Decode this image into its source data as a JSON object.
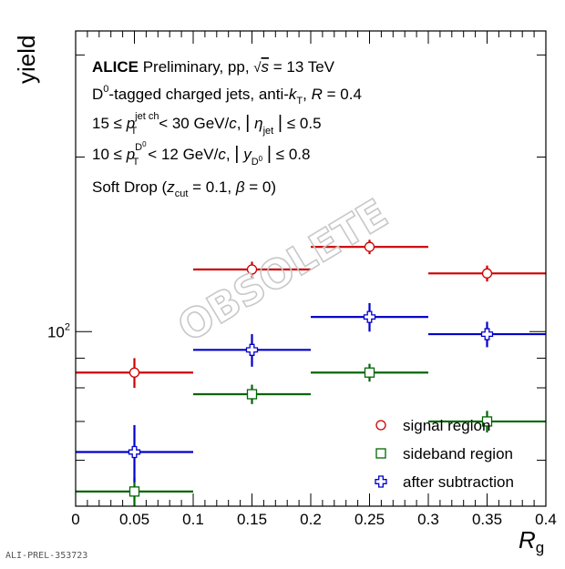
{
  "chart_data": {
    "type": "scatter",
    "xlabel": "R",
    "xlabel_sub": "g",
    "ylabel": "yield",
    "xlim": [
      0,
      0.4
    ],
    "ylim": [
      50,
      330
    ],
    "yscale": "log",
    "x_ticks": [
      "0",
      "0.05",
      "0.1",
      "0.15",
      "0.2",
      "0.25",
      "0.3",
      "0.35",
      "0.4"
    ],
    "y_tick_label": {
      "base": "10",
      "exp": "2"
    },
    "bins": [
      [
        0,
        0.1
      ],
      [
        0.1,
        0.2
      ],
      [
        0.2,
        0.3
      ],
      [
        0.3,
        0.4
      ]
    ],
    "x_centers": [
      0.05,
      0.15,
      0.25,
      0.35
    ],
    "series": [
      {
        "name": "signal region",
        "marker": "circle",
        "color": "#cc0000",
        "values": [
          85,
          128,
          140,
          126
        ],
        "errors": [
          5,
          4,
          4,
          4
        ]
      },
      {
        "name": "sideband region",
        "marker": "square",
        "color": "#006600",
        "values": [
          53,
          78,
          85,
          70
        ],
        "errors": [
          3,
          3,
          3,
          3
        ]
      },
      {
        "name": "after subtraction",
        "marker": "cross",
        "color": "#0000cc",
        "values": [
          62,
          93,
          106,
          99
        ],
        "errors": [
          7,
          6,
          6,
          5
        ]
      }
    ],
    "legend_position": "bottom-right",
    "annotations": {
      "line1_bold": "ALICE",
      "line1_rest": "Preliminary, pp, √s = 13 TeV",
      "line2": "D⁰-tagged charged jets, anti-kT, R = 0.4",
      "line3": "15 ≤ pT jet ch < 30 GeV/c, |ηjet| ≤ 0.5",
      "line4": "10 ≤ pT D⁰ < 12 GeV/c, |yD⁰| ≤ 0.8",
      "line5": "Soft Drop (zcut = 0.1, β = 0)"
    },
    "watermark": "OBSOLETE"
  },
  "footer": {
    "label": "ALI-PREL-353723"
  }
}
